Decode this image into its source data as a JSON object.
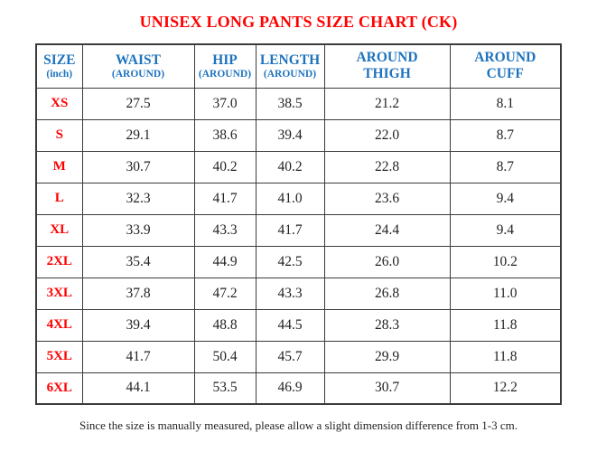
{
  "title": "UNISEX LONG PANTS SIZE CHART (CK)",
  "table": {
    "columns": [
      {
        "line1": "SIZE",
        "line2": "(inch)",
        "line2_small": true
      },
      {
        "line1": "WAIST",
        "line2": "(AROUND)",
        "line2_small": true
      },
      {
        "line1": "HIP",
        "line2": "(AROUND)",
        "line2_small": true
      },
      {
        "line1": "LENGTH",
        "line2": "(AROUND)",
        "line2_small": true
      },
      {
        "line1": "AROUND",
        "line2": "THIGH",
        "line2_small": false
      },
      {
        "line1": "AROUND",
        "line2": "CUFF",
        "line2_small": false
      }
    ],
    "rows": [
      {
        "size": "XS",
        "values": [
          "27.5",
          "37.0",
          "38.5",
          "21.2",
          "8.1"
        ]
      },
      {
        "size": "S",
        "values": [
          "29.1",
          "38.6",
          "39.4",
          "22.0",
          "8.7"
        ]
      },
      {
        "size": "M",
        "values": [
          "30.7",
          "40.2",
          "40.2",
          "22.8",
          "8.7"
        ]
      },
      {
        "size": "L",
        "values": [
          "32.3",
          "41.7",
          "41.0",
          "23.6",
          "9.4"
        ]
      },
      {
        "size": "XL",
        "values": [
          "33.9",
          "43.3",
          "41.7",
          "24.4",
          "9.4"
        ]
      },
      {
        "size": "2XL",
        "values": [
          "35.4",
          "44.9",
          "42.5",
          "26.0",
          "10.2"
        ]
      },
      {
        "size": "3XL",
        "values": [
          "37.8",
          "47.2",
          "43.3",
          "26.8",
          "11.0"
        ]
      },
      {
        "size": "4XL",
        "values": [
          "39.4",
          "48.8",
          "44.5",
          "28.3",
          "11.8"
        ]
      },
      {
        "size": "5XL",
        "values": [
          "41.7",
          "50.4",
          "45.7",
          "29.9",
          "11.8"
        ]
      },
      {
        "size": "6XL",
        "values": [
          "44.1",
          "53.5",
          "46.9",
          "30.7",
          "12.2"
        ]
      }
    ]
  },
  "footnote": "Since the size is manually measured, please allow a slight dimension difference from 1-3 cm.",
  "colors": {
    "title_red": "#ff0000",
    "size_red": "#ff0000",
    "header_blue": "#1e73be",
    "value_text": "#231f20",
    "border": "#3b3b3b",
    "background": "#ffffff"
  }
}
